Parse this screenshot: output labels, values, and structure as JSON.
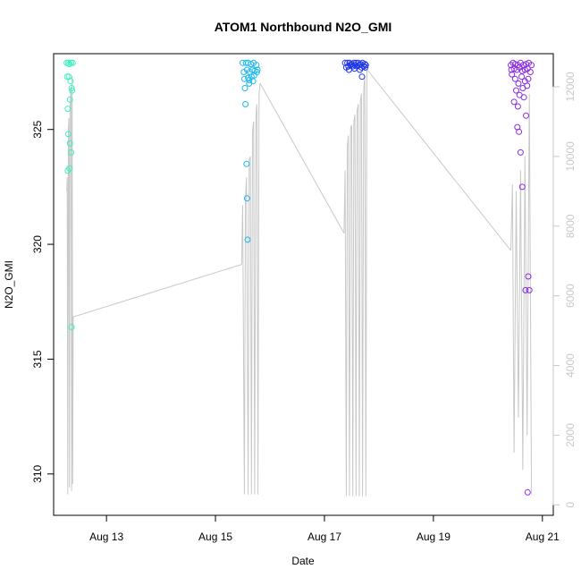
{
  "chart_data": {
    "type": "scatter",
    "title": "ATOM1 Northbound N2O_GMI",
    "xlabel": "Date",
    "ylabel": "N2O_GMI",
    "x_ticks": [
      "Aug 13",
      "Aug 15",
      "Aug 17",
      "Aug 19",
      "Aug 21"
    ],
    "x_tick_days": [
      13,
      15,
      17,
      19,
      21
    ],
    "xlim_days": [
      12.03,
      21.2
    ],
    "y_ticks": [
      310,
      315,
      320,
      325
    ],
    "ylim": [
      308.2,
      328.3
    ],
    "y2_ticks": [
      0,
      2000,
      4000,
      6000,
      8000,
      10000,
      12000
    ],
    "y2lim": [
      -300,
      12950
    ],
    "grid": false,
    "legend": "none",
    "colors": {
      "altitude_line": "#c8c8c8",
      "right_axis": "#c8c8c8",
      "flight_1": "#3ff0c0",
      "flight_2": "#1cb8ee",
      "flight_3": "#1f36e8",
      "flight_4": "#8a2be2"
    },
    "series": [
      {
        "flight": 1,
        "color_key": "flight_1",
        "x_day": [
          12.27,
          12.3,
          12.32,
          12.35,
          12.38,
          12.28,
          12.31,
          12.34,
          12.36,
          12.29,
          12.33,
          12.37,
          12.3,
          12.33,
          12.35,
          12.29,
          12.32,
          12.36
        ],
        "n2o": [
          327.9,
          327.9,
          327.85,
          327.9,
          327.9,
          327.3,
          327.3,
          327.1,
          326.8,
          325.9,
          326.3,
          326.7,
          324.8,
          324.4,
          324.0,
          323.2,
          323.3,
          316.4
        ]
      },
      {
        "flight": 2,
        "color_key": "flight_2",
        "x_day": [
          15.5,
          15.56,
          15.6,
          15.65,
          15.7,
          15.75,
          15.52,
          15.58,
          15.63,
          15.68,
          15.72,
          15.77,
          15.53,
          15.6,
          15.66,
          15.71,
          15.76,
          15.54,
          15.62,
          15.69,
          15.55,
          15.62,
          15.57,
          15.58,
          15.59
        ],
        "n2o": [
          327.9,
          327.9,
          327.9,
          327.85,
          327.9,
          327.8,
          327.5,
          327.6,
          327.5,
          327.6,
          327.55,
          327.6,
          327.2,
          327.25,
          327.3,
          327.35,
          327.5,
          326.8,
          327.0,
          327.1,
          326.1,
          327.15,
          323.5,
          322.0,
          320.2
        ]
      },
      {
        "flight": 3,
        "color_key": "flight_3",
        "x_day": [
          17.38,
          17.42,
          17.46,
          17.5,
          17.54,
          17.58,
          17.62,
          17.66,
          17.7,
          17.74,
          17.4,
          17.44,
          17.48,
          17.52,
          17.56,
          17.6,
          17.64,
          17.68,
          17.72,
          17.76,
          17.45,
          17.55,
          17.65,
          17.75,
          17.69
        ],
        "n2o": [
          327.9,
          327.9,
          327.9,
          327.85,
          327.9,
          327.9,
          327.9,
          327.85,
          327.9,
          327.85,
          327.7,
          327.75,
          327.8,
          327.75,
          327.8,
          327.75,
          327.8,
          327.7,
          327.75,
          327.8,
          327.6,
          327.65,
          327.6,
          327.7,
          327.3
        ]
      },
      {
        "flight": 4,
        "color_key": "flight_4",
        "x_day": [
          20.42,
          20.46,
          20.5,
          20.55,
          20.6,
          20.65,
          20.7,
          20.75,
          20.8,
          20.43,
          20.48,
          20.53,
          20.58,
          20.63,
          20.68,
          20.73,
          20.78,
          20.44,
          20.5,
          20.56,
          20.62,
          20.68,
          20.74,
          20.52,
          20.58,
          20.64,
          20.72,
          20.48,
          20.55,
          20.66,
          20.54,
          20.57,
          20.6,
          20.63,
          20.7,
          20.69,
          20.74,
          20.73,
          20.76
        ],
        "n2o": [
          327.8,
          327.9,
          327.85,
          327.8,
          327.9,
          327.8,
          327.85,
          327.9,
          327.8,
          327.6,
          327.65,
          327.6,
          327.7,
          327.55,
          327.6,
          327.65,
          327.5,
          327.4,
          327.2,
          327.0,
          327.3,
          327.1,
          327.2,
          326.7,
          326.5,
          326.8,
          326.9,
          326.2,
          326.0,
          326.4,
          325.1,
          324.9,
          324.0,
          322.5,
          325.6,
          318.0,
          318.6,
          309.2,
          318.0
        ]
      }
    ],
    "altitude_segments": [
      {
        "x_day": [
          12.27,
          12.28,
          12.29,
          12.3,
          12.31,
          12.32,
          12.33,
          12.34,
          12.35,
          12.36,
          12.37,
          12.38,
          12.39,
          12.4
        ],
        "alt": [
          9000,
          9400,
          300,
          10800,
          11100,
          500,
          11400,
          11700,
          12000,
          400,
          12300,
          600,
          5400,
          5400
        ]
      },
      {
        "x_day": [
          12.4,
          15.48
        ],
        "alt": [
          5400,
          6900
        ]
      },
      {
        "x_day": [
          15.48,
          15.5,
          15.53,
          15.55,
          15.57,
          15.6,
          15.62,
          15.64,
          15.66,
          15.68,
          15.7,
          15.72,
          15.74,
          15.76,
          15.78,
          15.8,
          15.82
        ],
        "alt": [
          6900,
          8600,
          300,
          8800,
          9400,
          300,
          9900,
          10000,
          300,
          10700,
          11000,
          300,
          11100,
          11500,
          300,
          11800,
          12100
        ]
      },
      {
        "x_day": [
          15.82,
          17.36
        ],
        "alt": [
          12100,
          7800
        ]
      },
      {
        "x_day": [
          17.36,
          17.38,
          17.4,
          17.42,
          17.44,
          17.46,
          17.48,
          17.5,
          17.52,
          17.54,
          17.56,
          17.58,
          17.6,
          17.62,
          17.64,
          17.66,
          17.68,
          17.7,
          17.72,
          17.74,
          17.76,
          17.78
        ],
        "alt": [
          7800,
          9600,
          250,
          10300,
          10600,
          250,
          10800,
          10900,
          250,
          11000,
          11200,
          250,
          11300,
          11500,
          250,
          11600,
          11800,
          250,
          11900,
          12300,
          250,
          12500
        ]
      },
      {
        "x_day": [
          17.78,
          20.42
        ],
        "alt": [
          12500,
          7300
        ]
      },
      {
        "x_day": [
          20.42,
          20.45,
          20.48,
          20.52,
          20.56,
          20.6,
          20.64,
          20.68,
          20.72,
          20.76,
          20.8
        ],
        "alt": [
          7300,
          9200,
          1500,
          9000,
          2500,
          9600,
          1000,
          10000,
          2000,
          11800,
          300
        ]
      }
    ]
  }
}
